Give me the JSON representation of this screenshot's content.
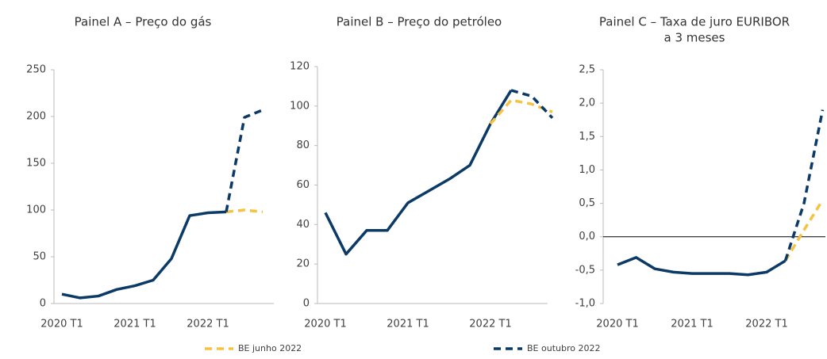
{
  "chart_data": [
    {
      "type": "line",
      "title": [
        "Painel A – Preço do gás"
      ],
      "categories": [
        "2020 T1",
        null,
        null,
        null,
        "2021 T1",
        null,
        null,
        null,
        "2022 T1",
        null,
        null,
        null
      ],
      "ylim": [
        0,
        250
      ],
      "yticks": [
        0,
        50,
        100,
        150,
        200,
        250
      ],
      "series": [
        {
          "color": "#0b3a66",
          "style": "solid",
          "values": [
            10,
            6,
            8,
            15,
            19,
            25,
            48,
            94,
            97,
            98,
            null,
            null
          ]
        },
        {
          "color": "#f5c242",
          "style": "dashed",
          "values": [
            null,
            null,
            null,
            null,
            null,
            null,
            null,
            null,
            null,
            98,
            100,
            98
          ]
        },
        {
          "color": "#0b3a66",
          "style": "dashed",
          "values": [
            null,
            null,
            null,
            null,
            null,
            null,
            null,
            null,
            null,
            98,
            199,
            207
          ]
        }
      ]
    },
    {
      "type": "line",
      "title": [
        "Painel B – Preço do petróleo"
      ],
      "categories": [
        "2020 T1",
        null,
        null,
        null,
        "2021 T1",
        null,
        null,
        null,
        "2022 T1",
        null,
        null,
        null
      ],
      "ylim": [
        0,
        120
      ],
      "yticks": [
        0,
        20,
        40,
        60,
        80,
        100,
        120
      ],
      "series": [
        {
          "color": "#0b3a66",
          "style": "solid",
          "values": [
            46,
            25,
            37,
            37,
            51,
            57,
            63,
            70,
            91,
            108,
            null,
            null
          ]
        },
        {
          "color": "#f5c242",
          "style": "dashed",
          "values": [
            null,
            null,
            null,
            null,
            null,
            null,
            null,
            null,
            91,
            103,
            101,
            97
          ]
        },
        {
          "color": "#0b3a66",
          "style": "dashed",
          "values": [
            null,
            null,
            null,
            null,
            null,
            null,
            null,
            null,
            null,
            108,
            105,
            94
          ]
        }
      ]
    },
    {
      "type": "line",
      "title": [
        "Painel C – Taxa de juro EURIBOR",
        "a 3 meses"
      ],
      "categories": [
        "2020 T1",
        null,
        null,
        null,
        "2021 T1",
        null,
        null,
        null,
        "2022 T1",
        null,
        null,
        null
      ],
      "ylim": [
        -1,
        2.5
      ],
      "yticks": [
        {
          "value": -1,
          "label": "-1,0"
        },
        {
          "value": -0.5,
          "label": "-0,5"
        },
        {
          "value": 0,
          "label": "0,0"
        },
        {
          "value": 0.5,
          "label": "0,5"
        },
        {
          "value": 1,
          "label": "1,0"
        },
        {
          "value": 1.5,
          "label": "1,5"
        },
        {
          "value": 2,
          "label": "2,0"
        },
        {
          "value": 2.5,
          "label": "2,5"
        }
      ],
      "zero_line": true,
      "series": [
        {
          "color": "#0b3a66",
          "style": "solid",
          "values": [
            -0.42,
            -0.31,
            -0.48,
            -0.53,
            -0.55,
            -0.55,
            -0.55,
            -0.57,
            -0.53,
            -0.36,
            null,
            null
          ]
        },
        {
          "color": "#f5c242",
          "style": "dashed",
          "values": [
            null,
            null,
            null,
            null,
            null,
            null,
            null,
            null,
            null,
            -0.36,
            0.1,
            0.55
          ]
        },
        {
          "color": "#0b3a66",
          "style": "dashed",
          "values": [
            null,
            null,
            null,
            null,
            null,
            null,
            null,
            null,
            null,
            -0.36,
            0.5,
            1.9
          ]
        }
      ]
    }
  ],
  "legend": [
    {
      "name": "BE junho 2022",
      "color": "#f5c242"
    },
    {
      "name": "BE outubro 2022",
      "color": "#0b3a66"
    }
  ]
}
